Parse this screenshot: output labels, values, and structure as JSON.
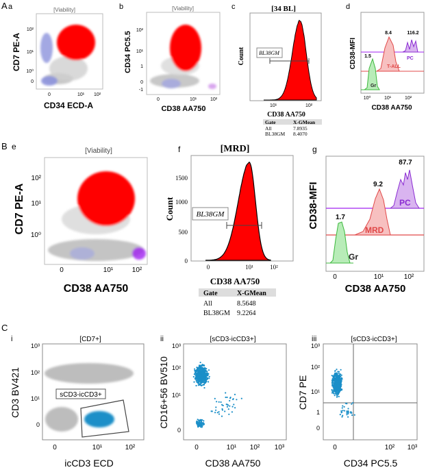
{
  "colors": {
    "red": "#ff0000",
    "grey": "#aaaaaa",
    "blue": "#8c92dc",
    "purple": "#a020f0",
    "green": "#6ed66e",
    "tall": "#e04848",
    "teal": "#1b8fc8"
  },
  "section_labels": {
    "A": "A",
    "B": "B",
    "C": "C"
  },
  "chart_data": [
    {
      "id": "a",
      "type": "scatter",
      "panel_letter": "a",
      "title": "[Viability]",
      "xlabel": "CD34 ECD-A",
      "ylabel": "CD7 PE-A",
      "xticks": [
        "0",
        "10¹",
        "10²"
      ],
      "yticks": [
        "10²",
        "10¹",
        "10⁰",
        "0"
      ],
      "populations": [
        {
          "name": "CD7+",
          "color": "red",
          "x": 12,
          "y": 60
        },
        {
          "name": "blue",
          "color": "blue",
          "x": -0.3,
          "y": 3
        },
        {
          "name": "grey",
          "color": "grey",
          "x": 3,
          "y": 1
        }
      ]
    },
    {
      "id": "b",
      "type": "scatter",
      "panel_letter": "b",
      "title": "[Viability]",
      "xlabel": "CD38 AA750",
      "ylabel": "CD34 PC5.5",
      "xticks": [
        "0",
        "10¹",
        "10²"
      ],
      "yticks": [
        "10²",
        "10¹",
        "1",
        "0",
        "-1"
      ],
      "populations": [
        {
          "name": "CD34+",
          "color": "red",
          "x": 10,
          "y": 25
        },
        {
          "name": "grey",
          "color": "grey",
          "x": 2,
          "y": 0.5
        },
        {
          "name": "purple",
          "color": "purple",
          "x": 80,
          "y": 0.3
        }
      ]
    },
    {
      "id": "c",
      "type": "histogram",
      "panel_letter": "c",
      "title": "[34 BL]",
      "xlabel": "CD38 AA750",
      "ylabel": "Count",
      "xticks": [
        "10¹",
        "10²"
      ],
      "yticks": [],
      "gate": {
        "label": "BL38GM"
      },
      "stats": {
        "headers": [
          "Gate",
          "X-GMean"
        ],
        "rows": [
          [
            "All",
            "7.8935"
          ],
          [
            "BL38GM",
            "8.4070"
          ]
        ]
      }
    },
    {
      "id": "d",
      "type": "overlay-histogram",
      "panel_letter": "d",
      "title": "",
      "xlabel": "CD38 AA750",
      "ylabel": "CD38-MFI",
      "xticks": [
        "10⁰",
        "10¹",
        "10²"
      ],
      "series": [
        {
          "name": "Gr",
          "color": "green",
          "mfi": "1.5"
        },
        {
          "name": "T-ALL",
          "color": "tall",
          "mfi": "8.4"
        },
        {
          "name": "PC",
          "color": "purple",
          "mfi": "116.2"
        }
      ]
    },
    {
      "id": "e",
      "type": "scatter",
      "panel_letter": "e",
      "title": "[Viability]",
      "xlabel": "CD38 AA750",
      "ylabel": "CD7 PE-A",
      "xticks": [
        "0",
        "10¹",
        "10²"
      ],
      "yticks": [
        "10²",
        "10¹",
        "10⁰"
      ],
      "populations": [
        {
          "name": "CD7+",
          "color": "red",
          "x": 14,
          "y": 20
        },
        {
          "name": "grey",
          "color": "grey",
          "x": 8,
          "y": 0.5
        },
        {
          "name": "purple",
          "color": "purple",
          "x": 100,
          "y": 0.5
        }
      ]
    },
    {
      "id": "f",
      "type": "histogram",
      "panel_letter": "f",
      "title": "[MRD]",
      "xlabel": "CD38 AA750",
      "ylabel": "Count",
      "xticks": [
        "0",
        "10¹",
        "10²"
      ],
      "yticks": [
        "1500",
        "1000",
        "500",
        "0"
      ],
      "ylim": [
        0,
        1750
      ],
      "gate": {
        "label": "BL38GM"
      },
      "stats": {
        "headers": [
          "Gate",
          "X-GMean"
        ],
        "rows": [
          [
            "All",
            "8.5648"
          ],
          [
            "BL38GM",
            "9.2264"
          ]
        ]
      }
    },
    {
      "id": "g",
      "type": "overlay-histogram",
      "panel_letter": "g",
      "title": "",
      "xlabel": "CD38 AA750",
      "ylabel": "CD38-MFI",
      "xticks": [
        "0",
        "10¹",
        "10²"
      ],
      "series": [
        {
          "name": "Gr",
          "color": "green",
          "mfi": "1.7"
        },
        {
          "name": "MRD",
          "color": "tall",
          "mfi": "9.2"
        },
        {
          "name": "PC",
          "color": "purple",
          "mfi": "87.7"
        }
      ]
    },
    {
      "id": "i",
      "type": "scatter",
      "panel_letter": "i",
      "title": "[CD7+]",
      "xlabel": "icCD3 ECD",
      "ylabel": "CD3 BV421",
      "xticks": [
        "0",
        "10¹",
        "10²"
      ],
      "yticks": [
        "10³",
        "10²",
        "10¹",
        "0"
      ],
      "gate": {
        "label": "sCD3-icCD3+"
      },
      "populations": [
        {
          "name": "sCD3+",
          "color": "grey",
          "x": 10,
          "y": 250
        },
        {
          "name": "sCD3-icCD3-",
          "color": "grey",
          "x": 0,
          "y": 2
        },
        {
          "name": "sCD3-icCD3+",
          "color": "teal",
          "x": 12,
          "y": 2
        }
      ]
    },
    {
      "id": "ii",
      "type": "scatter",
      "panel_letter": "ii",
      "title": "[sCD3-icCD3+]",
      "xlabel": "CD38 AA750",
      "ylabel": "CD16+56 BV510",
      "xticks": [
        "0",
        "10¹",
        "10²",
        "10³"
      ],
      "yticks": [
        "10³",
        "10²",
        "10¹",
        "0"
      ],
      "populations": [
        {
          "name": "hi",
          "color": "teal",
          "x": 0.3,
          "y": 50
        },
        {
          "name": "lo",
          "color": "teal",
          "x": 0.3,
          "y": 0
        }
      ]
    },
    {
      "id": "iii",
      "type": "scatter",
      "panel_letter": "iii",
      "title": "[sCD3-icCD3+]",
      "xlabel": "CD34 PC5.5",
      "ylabel": "CD7 PE",
      "xticks": [
        "0",
        "10²",
        "10³"
      ],
      "yticks": [
        "10³",
        "10²",
        "10¹",
        "1",
        "0"
      ],
      "populations": [
        {
          "name": "CD7+CD34-",
          "color": "teal",
          "x": 0,
          "y": 20
        }
      ]
    }
  ]
}
